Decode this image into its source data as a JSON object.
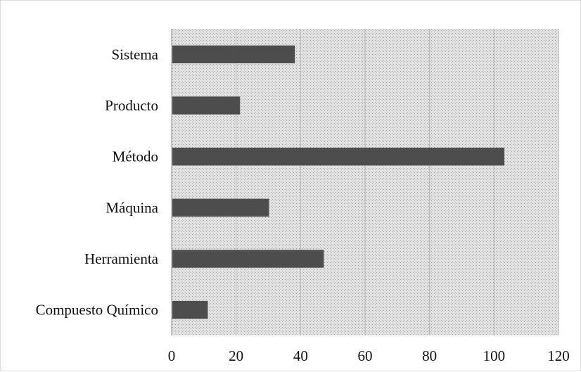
{
  "chart_data": {
    "type": "bar",
    "orientation": "horizontal",
    "title": "",
    "xlabel": "",
    "ylabel": "",
    "categories": [
      "Sistema",
      "Producto",
      "Método",
      "Máquina",
      "Herramienta",
      "Compuesto Químico"
    ],
    "values": [
      38,
      21,
      103,
      30,
      47,
      11
    ],
    "xlim": [
      0,
      120
    ],
    "xticks": [
      0,
      20,
      40,
      60,
      80,
      100,
      120
    ],
    "grid": "vertical",
    "legend": "none",
    "colors": {
      "bar": "#4d4d4d",
      "plot_background": "#d6d6d6",
      "gridline": "#b5b5b5",
      "text": "#111111"
    }
  }
}
